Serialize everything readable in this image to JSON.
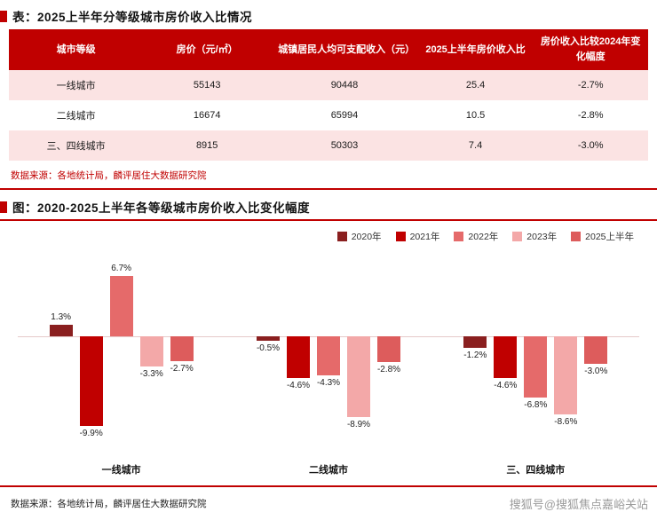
{
  "page": {
    "table_title": "表：2025上半年分等级城市房价收入比情况",
    "chart_title": "图：2020-2025上半年各等级城市房价收入比变化幅度",
    "table_source": "数据来源：各地统计局，麟评居住大数据研究院",
    "chart_source": "数据来源：各地统计局，麟评居住大数据研究院",
    "watermark": "搜狐号@搜狐焦点嘉峪关站"
  },
  "colors": {
    "accent_red": "#c00000",
    "row_pink": "#fbe3e3"
  },
  "table": {
    "headers": [
      "城市等级",
      "房价（元/㎡）",
      "城镇居民人均可支配收入（元）",
      "2025上半年房价收入比",
      "房价收入比较2024年变化幅度"
    ],
    "rows": [
      [
        "一线城市",
        "55143",
        "90448",
        "25.4",
        "-2.7%"
      ],
      [
        "二线城市",
        "16674",
        "65994",
        "10.5",
        "-2.8%"
      ],
      [
        "三、四线城市",
        "8915",
        "50303",
        "7.4",
        "-3.0%"
      ]
    ]
  },
  "chart_data": {
    "type": "bar",
    "title": "2020-2025上半年各等级城市房价收入比变化幅度",
    "categories": [
      "一线城市",
      "二线城市",
      "三、四线城市"
    ],
    "series": [
      {
        "name": "2020年",
        "color": "#8a1f1f",
        "values": [
          1.3,
          -0.5,
          -1.2
        ]
      },
      {
        "name": "2021年",
        "color": "#c00000",
        "values": [
          -9.9,
          -4.6,
          -4.6
        ]
      },
      {
        "name": "2022年",
        "color": "#e56a6a",
        "values": [
          6.7,
          -4.3,
          -6.8
        ]
      },
      {
        "name": "2023年",
        "color": "#f3a8a8",
        "values": [
          -3.3,
          -8.9,
          -8.6
        ]
      },
      {
        "name": "2025上半年",
        "color": "#dd5c5c",
        "values": [
          -2.7,
          -2.8,
          -3.0
        ]
      }
    ],
    "ylim": [
      -11,
      8
    ],
    "value_suffix": "%",
    "xlabel": "",
    "ylabel": "",
    "grid": false,
    "legend_position": "top-right"
  }
}
